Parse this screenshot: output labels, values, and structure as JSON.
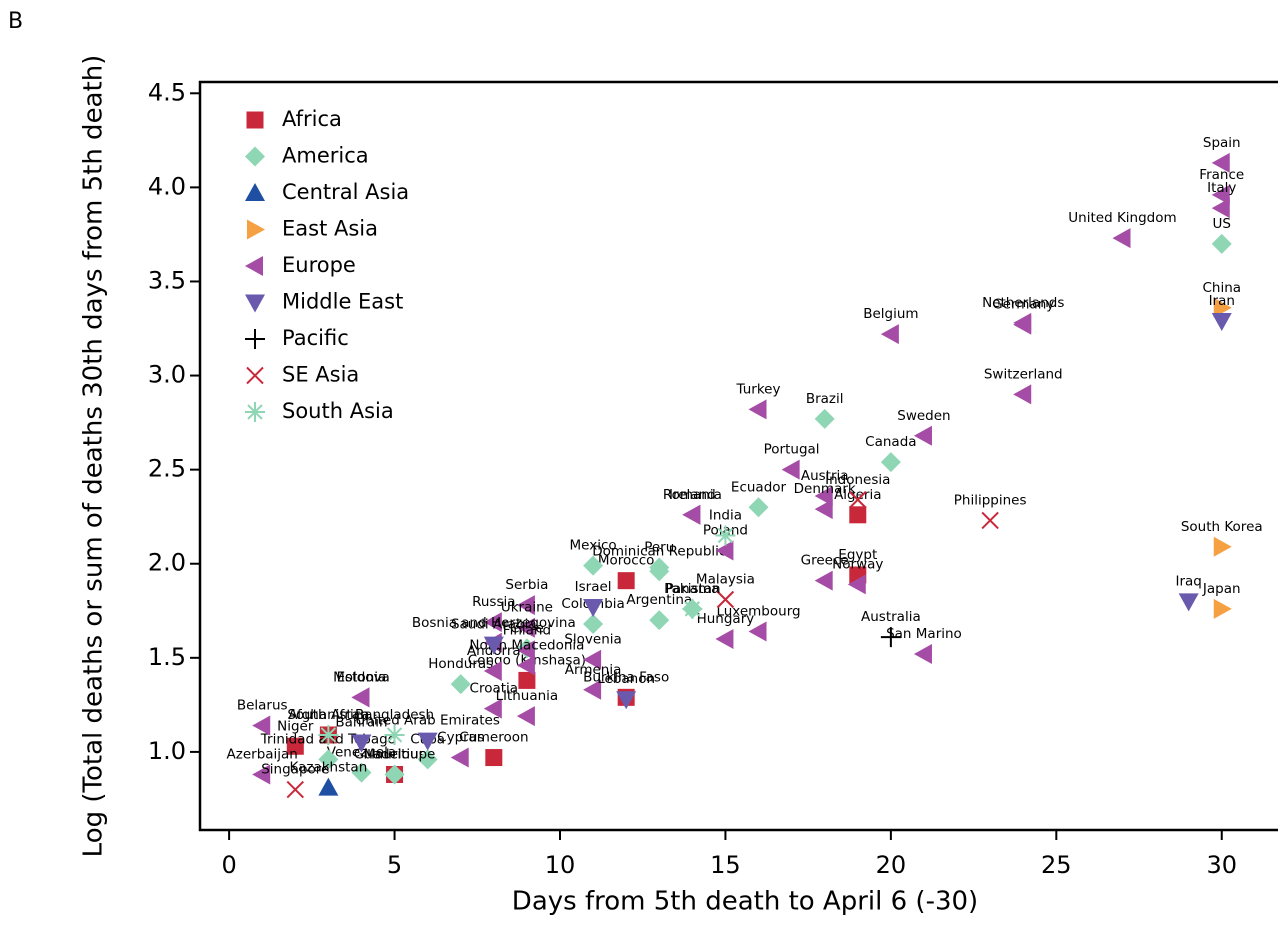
{
  "chart_data": {
    "type": "scatter",
    "panel_label": "B",
    "xlabel": "Days from 5th death to April 6 (-30)",
    "ylabel": "Log (Total deaths or sum of deaths 30th days from 5th death)",
    "xlim": [
      -0.88,
      31.7
    ],
    "ylim": [
      0.585,
      4.56
    ],
    "xticks": [
      0,
      5,
      10,
      15,
      20,
      25,
      30
    ],
    "yticks": [
      {
        "value": 1,
        "label": "1.0"
      },
      1.5,
      {
        "value": 2,
        "label": "2.0"
      },
      2.5,
      {
        "value": 3,
        "label": "3.0"
      },
      3.5,
      {
        "value": 4,
        "label": "4.0"
      },
      4.5
    ],
    "series": [
      {
        "name": "Africa",
        "color": "#c8283a",
        "marker": "square",
        "x": [
          19,
          19,
          12,
          3,
          2,
          8,
          12,
          9,
          5
        ],
        "y": [
          2.26,
          1.94,
          1.91,
          1.09,
          1.03,
          0.97,
          1.29,
          1.38,
          0.88
        ],
        "labels": [
          "Algeria",
          "Egypt",
          "Morocco",
          "South Africa",
          "Niger",
          "Cameroon",
          "Burkina Faso",
          "Congo (Kinshasa)",
          "Mauritius"
        ]
      },
      {
        "name": "America",
        "color": "#8fd6b4",
        "marker": "diamond",
        "x": [
          30,
          18,
          20,
          16,
          13,
          13,
          11,
          13,
          11,
          14,
          7,
          4,
          6,
          3,
          5,
          9
        ],
        "y": [
          3.7,
          2.77,
          2.54,
          2.3,
          1.96,
          1.98,
          1.99,
          1.7,
          1.68,
          1.76,
          1.36,
          0.89,
          0.96,
          0.96,
          0.88,
          1.55
        ],
        "labels": [
          "US",
          "Brazil",
          "Canada",
          "Ecuador",
          "Dominican Republic",
          "Peru",
          "Mexico",
          "Argentina",
          "Colombia",
          "Panama",
          "Honduras",
          "Venezuela",
          "Cuba",
          "Trinidad and Tobago",
          "Guadeloupe",
          "Chile"
        ]
      },
      {
        "name": "Central Asia",
        "color": "#1f4fa3",
        "marker": "triangle-up",
        "x": [
          3
        ],
        "y": [
          0.81
        ],
        "labels": [
          "Kazakhstan"
        ]
      },
      {
        "name": "East Asia",
        "color": "#f5a043",
        "marker": "triangle-right",
        "x": [
          30,
          30,
          30
        ],
        "y": [
          3.36,
          2.09,
          1.76
        ],
        "labels": [
          "China",
          "South Korea",
          "Japan"
        ]
      },
      {
        "name": "Europe",
        "color": "#a54ca6",
        "marker": "triangle-left",
        "x": [
          30,
          30,
          30,
          27,
          24,
          24,
          20,
          24,
          16,
          21,
          17,
          18,
          18,
          14,
          14,
          15,
          18,
          19,
          16,
          15,
          21,
          9,
          8,
          9,
          11,
          9,
          8,
          9,
          8,
          11,
          8,
          9,
          4,
          4,
          1,
          1,
          7
        ],
        "y": [
          4.13,
          3.96,
          3.89,
          3.73,
          3.28,
          3.27,
          3.22,
          2.9,
          2.82,
          2.68,
          2.5,
          2.36,
          2.29,
          2.26,
          2.26,
          2.07,
          1.91,
          1.89,
          1.64,
          1.6,
          1.52,
          1.78,
          1.69,
          1.66,
          1.49,
          1.54,
          1.58,
          1.46,
          1.43,
          1.33,
          1.23,
          1.19,
          1.29,
          1.29,
          1.14,
          0.88,
          0.97
        ],
        "labels": [
          "Spain",
          "France",
          "Italy",
          "United Kingdom",
          "Netherlands",
          "Germany",
          "Belgium",
          "Switzerland",
          "Turkey",
          "Sweden",
          "Portugal",
          "Austria",
          "Denmark",
          "Romania",
          "Ireland",
          "Poland",
          "Greece",
          "Norway",
          "Luxembourg",
          "Hungary",
          "San Marino",
          "Serbia",
          "Russia",
          "Ukraine",
          "Slovenia",
          "Finland",
          "Bosnia and Herzegovina",
          "North Macedonia",
          "Andorra",
          "Armenia",
          "Croatia",
          "Lithuania",
          "Moldova",
          "Estonia",
          "Belarus",
          "Azerbaijan",
          "Cyprus"
        ]
      },
      {
        "name": "Middle East",
        "color": "#6a5aad",
        "marker": "triangle-down",
        "x": [
          30,
          29,
          11,
          8,
          12,
          6,
          4
        ],
        "y": [
          3.29,
          1.8,
          1.77,
          1.57,
          1.28,
          1.06,
          1.05
        ],
        "labels": [
          "Iran",
          "Iraq",
          "Israel",
          "Saudi Arabia",
          "Lebanon",
          "United Arab Emirates",
          "Bahrain"
        ]
      },
      {
        "name": "Pacific",
        "color": "#000000",
        "marker": "plus",
        "x": [
          20
        ],
        "y": [
          1.61
        ],
        "labels": [
          "Australia"
        ]
      },
      {
        "name": "SE Asia",
        "color": "#c8283a",
        "marker": "cross",
        "x": [
          19,
          23,
          15,
          2
        ],
        "y": [
          2.34,
          2.23,
          1.81,
          0.8
        ],
        "labels": [
          "Indonesia",
          "Philippines",
          "Malaysia",
          "Singapore"
        ]
      },
      {
        "name": "South Asia",
        "color": "#8fd6b4",
        "marker": "asterisk",
        "x": [
          15,
          14,
          5,
          3
        ],
        "y": [
          2.15,
          1.76,
          1.09,
          1.09
        ],
        "labels": [
          "India",
          "Pakistan",
          "Bangladesh",
          "Afghanistan"
        ]
      }
    ]
  }
}
